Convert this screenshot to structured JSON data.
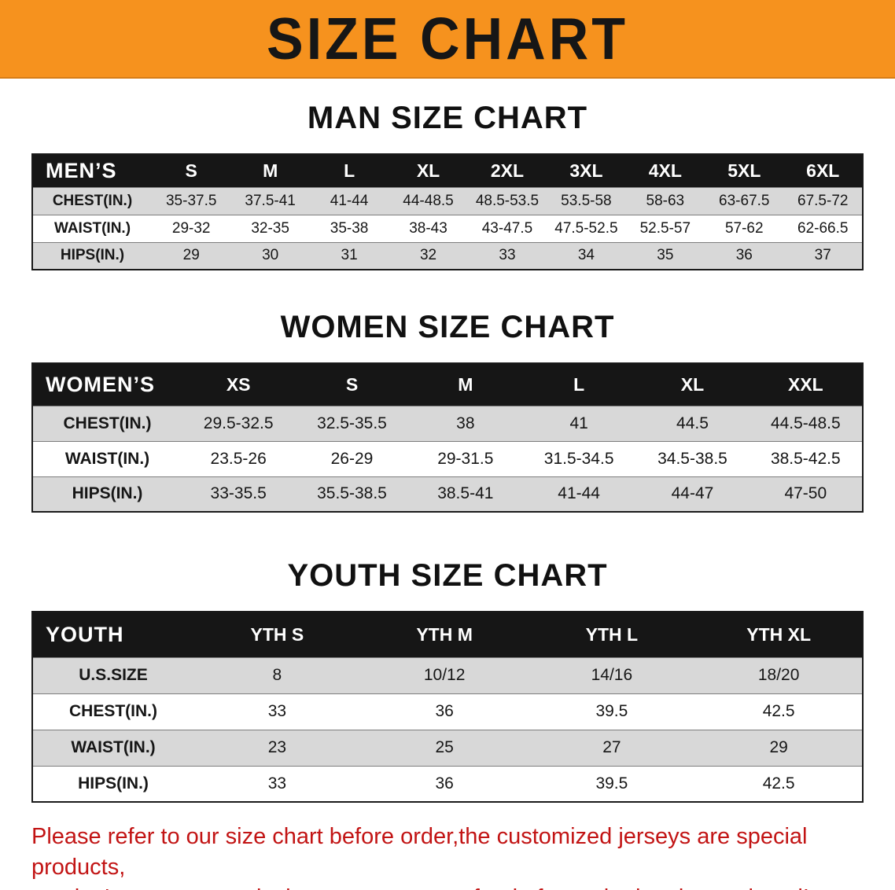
{
  "banner": {
    "title": "SIZE CHART"
  },
  "sections": [
    {
      "heading": "MAN SIZE CHART",
      "table": {
        "header": [
          "MEN’S",
          "S",
          "M",
          "L",
          "XL",
          "2XL",
          "3XL",
          "4XL",
          "5XL",
          "6XL"
        ],
        "rows": [
          [
            "CHEST(IN.)",
            "35-37.5",
            "37.5-41",
            "41-44",
            "44-48.5",
            "48.5-53.5",
            "53.5-58",
            "58-63",
            "63-67.5",
            "67.5-72"
          ],
          [
            "WAIST(IN.)",
            "29-32",
            "32-35",
            "35-38",
            "38-43",
            "43-47.5",
            "47.5-52.5",
            "52.5-57",
            "57-62",
            "62-66.5"
          ],
          [
            "HIPS(IN.)",
            "29",
            "30",
            "31",
            "32",
            "33",
            "34",
            "35",
            "36",
            "37"
          ]
        ]
      }
    },
    {
      "heading": "WOMEN SIZE CHART",
      "table": {
        "header": [
          "WOMEN’S",
          "XS",
          "S",
          "M",
          "L",
          "XL",
          "XXL"
        ],
        "rows": [
          [
            "CHEST(IN.)",
            "29.5-32.5",
            "32.5-35.5",
            "38",
            "41",
            "44.5",
            "44.5-48.5"
          ],
          [
            "WAIST(IN.)",
            "23.5-26",
            "26-29",
            "29-31.5",
            "31.5-34.5",
            "34.5-38.5",
            "38.5-42.5"
          ],
          [
            "HIPS(IN.)",
            "33-35.5",
            "35.5-38.5",
            "38.5-41",
            "41-44",
            "44-47",
            "47-50"
          ]
        ]
      }
    },
    {
      "heading": "YOUTH SIZE CHART",
      "table": {
        "header": [
          "YOUTH",
          "YTH S",
          "YTH M",
          "YTH L",
          "YTH XL"
        ],
        "rows": [
          [
            "U.S.SIZE",
            "8",
            "10/12",
            "14/16",
            "18/20"
          ],
          [
            "CHEST(IN.)",
            "33",
            "36",
            "39.5",
            "42.5"
          ],
          [
            "WAIST(IN.)",
            "23",
            "25",
            "27",
            "29"
          ],
          [
            "HIPS(IN.)",
            "33",
            "36",
            "39.5",
            "42.5"
          ]
        ]
      }
    }
  ],
  "disclaimer": {
    "lines": [
      "Please refer to our size chart before order,the customized jerseys are special products,",
      "we don't accept cancel, change, teturn or refund after order has been placed!"
    ]
  },
  "colors": {
    "banner_bg": "#F6921E",
    "table_header_bg": "#161616",
    "row_stripe_bg": "#D8D8D8",
    "disclaimer_text": "#C21414"
  }
}
